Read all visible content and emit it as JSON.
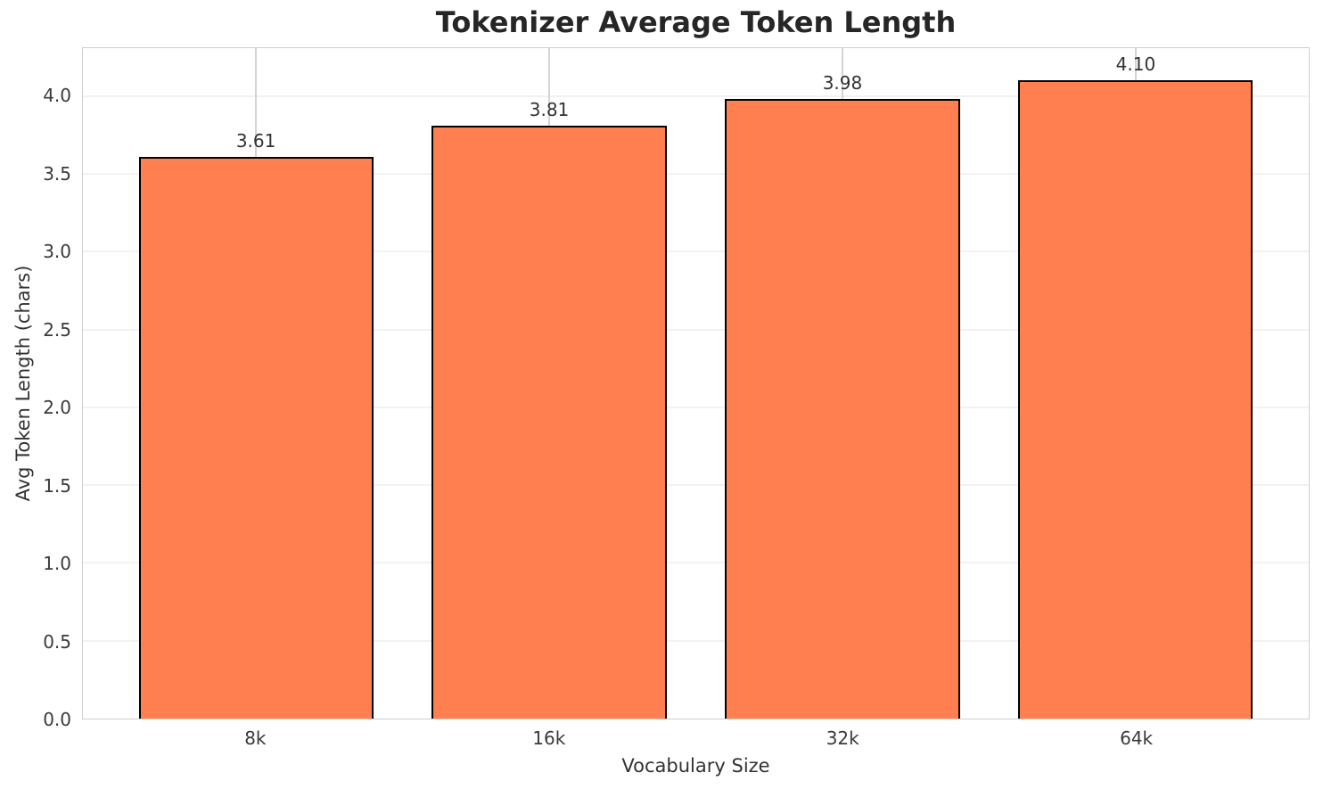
{
  "chart_data": {
    "type": "bar",
    "title": "Tokenizer Average Token Length",
    "xlabel": "Vocabulary Size",
    "ylabel": "Avg Token Length (chars)",
    "categories": [
      "8k",
      "16k",
      "32k",
      "64k"
    ],
    "values": [
      3.61,
      3.81,
      3.98,
      4.1
    ],
    "value_labels": [
      "3.61",
      "3.81",
      "3.98",
      "4.10"
    ],
    "yticks": [
      0.0,
      0.5,
      1.0,
      1.5,
      2.0,
      2.5,
      3.0,
      3.5,
      4.0
    ],
    "ytick_labels": [
      "0.0",
      "0.5",
      "1.0",
      "1.5",
      "2.0",
      "2.5",
      "3.0",
      "3.5",
      "4.0"
    ],
    "ylim": [
      0,
      4.31
    ],
    "grid": true,
    "legend": "none",
    "bar_color": "#ff7f50",
    "bar_edge_color": "#000000",
    "grid_color_horizontal": "#f2f2f2",
    "grid_color_vertical": "#d4d4d4",
    "spine_color": "#cfcfcf",
    "title_color": "#262626",
    "text_color": "#333333"
  }
}
